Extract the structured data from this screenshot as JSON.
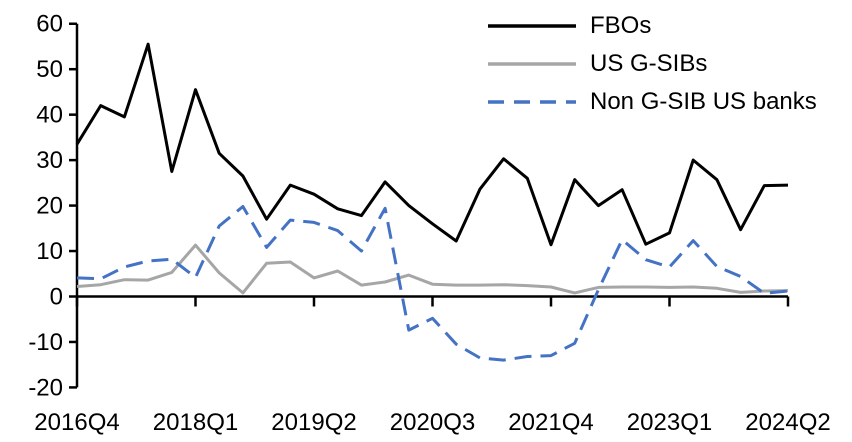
{
  "chart_data": {
    "type": "line",
    "title": "",
    "categories": [
      "2016Q4",
      "2017Q1",
      "2017Q2",
      "2017Q3",
      "2017Q4",
      "2018Q1",
      "2018Q2",
      "2018Q3",
      "2018Q4",
      "2019Q1",
      "2019Q2",
      "2019Q3",
      "2019Q4",
      "2020Q1",
      "2020Q2",
      "2020Q3",
      "2020Q4",
      "2021Q1",
      "2021Q2",
      "2021Q3",
      "2021Q4",
      "2022Q1",
      "2022Q2",
      "2022Q3",
      "2022Q4",
      "2023Q1",
      "2023Q2",
      "2023Q3",
      "2023Q4",
      "2024Q1",
      "2024Q2"
    ],
    "series": [
      {
        "name": "FBOs",
        "color": "#000000",
        "style": "solid",
        "values": [
          33.5,
          42.0,
          39.5,
          55.5,
          27.5,
          45.5,
          31.5,
          26.5,
          17.0,
          24.5,
          22.5,
          19.3,
          17.8,
          25.2,
          20.0,
          16.0,
          12.2,
          23.6,
          30.3,
          26.0,
          11.4,
          25.7,
          20.0,
          23.5,
          11.5,
          14.0,
          30.0,
          25.7,
          14.7,
          24.4,
          24.5
        ]
      },
      {
        "name": "US G-SIBs",
        "color": "#a6a6a6",
        "style": "solid",
        "values": [
          2.2,
          2.6,
          3.7,
          3.6,
          5.3,
          11.3,
          5.2,
          0.8,
          7.3,
          7.6,
          4.1,
          5.6,
          2.5,
          3.2,
          4.7,
          2.7,
          2.5,
          2.5,
          2.6,
          2.4,
          2.1,
          0.8,
          2.0,
          2.1,
          2.1,
          2.0,
          2.1,
          1.8,
          0.9,
          1.2,
          1.3
        ]
      },
      {
        "name": "Non G-SIB US banks",
        "color": "#4472c4",
        "style": "dashed",
        "values": [
          4.1,
          3.9,
          6.5,
          7.8,
          8.2,
          4.2,
          15.5,
          19.8,
          10.8,
          16.8,
          16.3,
          14.5,
          10.0,
          19.4,
          -7.4,
          -4.8,
          -10.5,
          -13.5,
          -14.0,
          -13.2,
          -13.0,
          -10.3,
          1.5,
          12.5,
          8.1,
          6.5,
          12.3,
          6.6,
          4.4,
          0.7,
          1.2
        ]
      }
    ],
    "ylim": [
      -20,
      60
    ],
    "yticks": [
      60,
      50,
      40,
      30,
      20,
      10,
      0,
      -10,
      -20
    ],
    "xtick_labels": [
      "2016Q4",
      "2018Q1",
      "2019Q2",
      "2020Q3",
      "2021Q4",
      "2023Q1",
      "2024Q2"
    ],
    "xtick_indices": [
      0,
      5,
      10,
      15,
      20,
      25,
      30
    ],
    "grid": false,
    "legend_position": "top-right",
    "axis_color": "#000000",
    "background_color": "#ffffff"
  }
}
